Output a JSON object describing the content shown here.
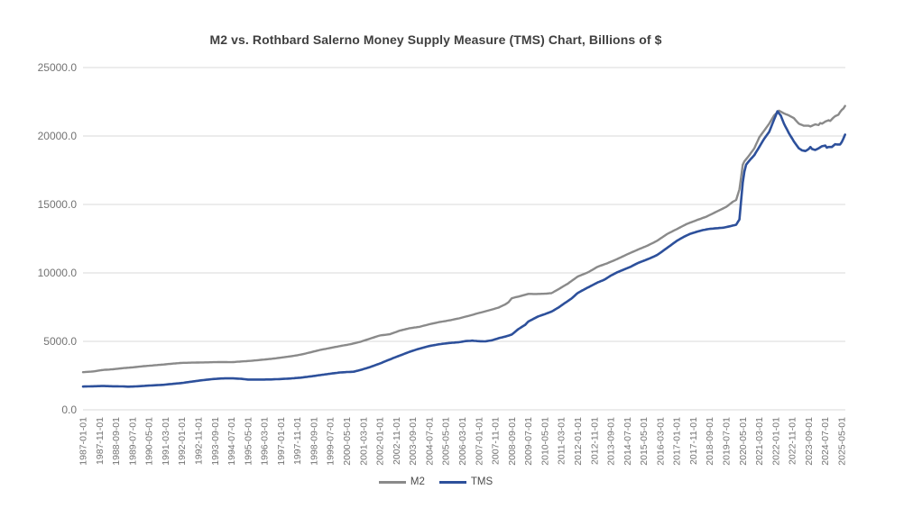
{
  "chart_data": {
    "type": "line",
    "title": "M2 vs. Rothbard Salerno Money Supply Measure (TMS) Chart, Billions of $",
    "xlabel": "",
    "ylabel": "",
    "units": "Billions of $",
    "ylim": [
      0,
      25000
    ],
    "y_tick_values": [
      0,
      5000,
      10000,
      15000,
      20000,
      25000
    ],
    "y_tick_labels": [
      "0.0",
      "5000.0",
      "10000.0",
      "15000.0",
      "20000.0",
      "25000.0"
    ],
    "grid": "horizontal",
    "legend_position": "bottom",
    "x_axis_note": "monthly data, month index 0 = 1987-01-01; ticks every 10 months",
    "x_tick_month_index": [
      0,
      10,
      20,
      30,
      40,
      50,
      60,
      70,
      80,
      90,
      100,
      110,
      120,
      130,
      140,
      150,
      160,
      170,
      180,
      190,
      200,
      210,
      220,
      230,
      240,
      250,
      260,
      270,
      280,
      290,
      300,
      310,
      320,
      330,
      340,
      350,
      360,
      370,
      380,
      390,
      400,
      410,
      420,
      430,
      440,
      450,
      460
    ],
    "x_tick_labels": [
      "1987-01-01",
      "1987-11-01",
      "1988-09-01",
      "1989-07-01",
      "1990-05-01",
      "1991-03-01",
      "1992-01-01",
      "1992-11-01",
      "1993-09-01",
      "1994-07-01",
      "1995-05-01",
      "1996-03-01",
      "1997-01-01",
      "1997-11-01",
      "1998-09-01",
      "1999-07-01",
      "2000-05-01",
      "2001-03-01",
      "2002-01-01",
      "2002-11-01",
      "2003-09-01",
      "2004-07-01",
      "2005-05-01",
      "2006-03-01",
      "2007-01-01",
      "2007-11-01",
      "2008-09-01",
      "2009-07-01",
      "2010-05-01",
      "2011-03-01",
      "2012-01-01",
      "2012-11-01",
      "2013-09-01",
      "2014-07-01",
      "2015-05-01",
      "2016-03-01",
      "2017-01-01",
      "2017-11-01",
      "2018-09-01",
      "2019-07-01",
      "2020-05-01",
      "2021-03-01",
      "2022-01-01",
      "2022-11-01",
      "2023-09-01",
      "2024-07-01",
      "2025-05-01"
    ],
    "series": [
      {
        "name": "M2",
        "color": "#8a8a8a",
        "points_format": "[month_index, billions_of_dollars]",
        "points": [
          [
            0,
            2750
          ],
          [
            6,
            2800
          ],
          [
            12,
            2910
          ],
          [
            18,
            2960
          ],
          [
            24,
            3040
          ],
          [
            30,
            3100
          ],
          [
            36,
            3180
          ],
          [
            42,
            3240
          ],
          [
            48,
            3300
          ],
          [
            54,
            3370
          ],
          [
            60,
            3430
          ],
          [
            66,
            3445
          ],
          [
            72,
            3460
          ],
          [
            78,
            3475
          ],
          [
            84,
            3490
          ],
          [
            90,
            3480
          ],
          [
            96,
            3530
          ],
          [
            102,
            3580
          ],
          [
            108,
            3650
          ],
          [
            114,
            3720
          ],
          [
            120,
            3810
          ],
          [
            126,
            3910
          ],
          [
            132,
            4030
          ],
          [
            138,
            4200
          ],
          [
            144,
            4380
          ],
          [
            150,
            4520
          ],
          [
            156,
            4660
          ],
          [
            162,
            4790
          ],
          [
            168,
            4960
          ],
          [
            174,
            5200
          ],
          [
            180,
            5430
          ],
          [
            186,
            5520
          ],
          [
            192,
            5780
          ],
          [
            198,
            5960
          ],
          [
            204,
            6060
          ],
          [
            210,
            6250
          ],
          [
            216,
            6410
          ],
          [
            222,
            6530
          ],
          [
            228,
            6680
          ],
          [
            234,
            6870
          ],
          [
            240,
            7070
          ],
          [
            246,
            7260
          ],
          [
            252,
            7470
          ],
          [
            256,
            7700
          ],
          [
            258,
            7860
          ],
          [
            260,
            8150
          ],
          [
            262,
            8220
          ],
          [
            264,
            8270
          ],
          [
            268,
            8400
          ],
          [
            270,
            8470
          ],
          [
            274,
            8460
          ],
          [
            280,
            8480
          ],
          [
            284,
            8520
          ],
          [
            288,
            8790
          ],
          [
            294,
            9220
          ],
          [
            300,
            9740
          ],
          [
            306,
            10030
          ],
          [
            312,
            10450
          ],
          [
            318,
            10710
          ],
          [
            324,
            11020
          ],
          [
            330,
            11360
          ],
          [
            336,
            11680
          ],
          [
            342,
            11980
          ],
          [
            348,
            12340
          ],
          [
            354,
            12830
          ],
          [
            360,
            13200
          ],
          [
            366,
            13570
          ],
          [
            372,
            13850
          ],
          [
            378,
            14110
          ],
          [
            384,
            14470
          ],
          [
            390,
            14820
          ],
          [
            394,
            15200
          ],
          [
            396,
            15330
          ],
          [
            398,
            16100
          ],
          [
            399,
            17000
          ],
          [
            400,
            17900
          ],
          [
            401,
            18150
          ],
          [
            404,
            18600
          ],
          [
            407,
            19100
          ],
          [
            410,
            19900
          ],
          [
            413,
            20400
          ],
          [
            416,
            20900
          ],
          [
            419,
            21500
          ],
          [
            422,
            21850
          ],
          [
            425,
            21650
          ],
          [
            428,
            21500
          ],
          [
            431,
            21300
          ],
          [
            434,
            20900
          ],
          [
            437,
            20750
          ],
          [
            440,
            20750
          ],
          [
            441,
            20700
          ],
          [
            444,
            20850
          ],
          [
            446,
            20800
          ],
          [
            447,
            20950
          ],
          [
            448,
            20900
          ],
          [
            450,
            21050
          ],
          [
            452,
            21150
          ],
          [
            453,
            21100
          ],
          [
            455,
            21350
          ],
          [
            456,
            21450
          ],
          [
            458,
            21550
          ],
          [
            459,
            21750
          ],
          [
            460,
            21900
          ],
          [
            461,
            22000
          ],
          [
            462,
            22200
          ]
        ]
      },
      {
        "name": "TMS",
        "color": "#2d509b",
        "points_format": "[month_index, billions_of_dollars]",
        "points": [
          [
            0,
            1700
          ],
          [
            6,
            1720
          ],
          [
            12,
            1740
          ],
          [
            18,
            1720
          ],
          [
            24,
            1710
          ],
          [
            27,
            1690
          ],
          [
            30,
            1700
          ],
          [
            36,
            1740
          ],
          [
            42,
            1780
          ],
          [
            48,
            1820
          ],
          [
            54,
            1890
          ],
          [
            60,
            1960
          ],
          [
            66,
            2060
          ],
          [
            72,
            2160
          ],
          [
            78,
            2240
          ],
          [
            84,
            2290
          ],
          [
            90,
            2300
          ],
          [
            96,
            2260
          ],
          [
            100,
            2210
          ],
          [
            108,
            2210
          ],
          [
            114,
            2220
          ],
          [
            120,
            2250
          ],
          [
            126,
            2290
          ],
          [
            132,
            2350
          ],
          [
            138,
            2440
          ],
          [
            144,
            2540
          ],
          [
            150,
            2640
          ],
          [
            156,
            2730
          ],
          [
            160,
            2760
          ],
          [
            164,
            2780
          ],
          [
            168,
            2900
          ],
          [
            174,
            3120
          ],
          [
            180,
            3380
          ],
          [
            186,
            3680
          ],
          [
            192,
            3960
          ],
          [
            198,
            4240
          ],
          [
            204,
            4470
          ],
          [
            210,
            4660
          ],
          [
            216,
            4790
          ],
          [
            222,
            4880
          ],
          [
            228,
            4940
          ],
          [
            232,
            5020
          ],
          [
            236,
            5050
          ],
          [
            240,
            5010
          ],
          [
            244,
            5000
          ],
          [
            248,
            5080
          ],
          [
            252,
            5230
          ],
          [
            256,
            5350
          ],
          [
            258,
            5420
          ],
          [
            260,
            5500
          ],
          [
            262,
            5700
          ],
          [
            264,
            5900
          ],
          [
            268,
            6200
          ],
          [
            270,
            6450
          ],
          [
            274,
            6700
          ],
          [
            276,
            6820
          ],
          [
            280,
            6990
          ],
          [
            284,
            7170
          ],
          [
            288,
            7450
          ],
          [
            292,
            7790
          ],
          [
            296,
            8110
          ],
          [
            300,
            8540
          ],
          [
            304,
            8800
          ],
          [
            308,
            9050
          ],
          [
            312,
            9300
          ],
          [
            316,
            9500
          ],
          [
            320,
            9800
          ],
          [
            324,
            10050
          ],
          [
            328,
            10250
          ],
          [
            332,
            10450
          ],
          [
            336,
            10700
          ],
          [
            340,
            10890
          ],
          [
            344,
            11080
          ],
          [
            348,
            11300
          ],
          [
            352,
            11640
          ],
          [
            356,
            11990
          ],
          [
            360,
            12340
          ],
          [
            364,
            12620
          ],
          [
            368,
            12850
          ],
          [
            372,
            13000
          ],
          [
            376,
            13130
          ],
          [
            380,
            13220
          ],
          [
            384,
            13260
          ],
          [
            388,
            13300
          ],
          [
            392,
            13400
          ],
          [
            396,
            13520
          ],
          [
            398,
            13900
          ],
          [
            399,
            15300
          ],
          [
            400,
            16600
          ],
          [
            401,
            17400
          ],
          [
            402,
            17900
          ],
          [
            404,
            18200
          ],
          [
            407,
            18600
          ],
          [
            410,
            19200
          ],
          [
            413,
            19800
          ],
          [
            416,
            20300
          ],
          [
            419,
            21200
          ],
          [
            421,
            21800
          ],
          [
            423,
            21500
          ],
          [
            425,
            20900
          ],
          [
            428,
            20200
          ],
          [
            431,
            19600
          ],
          [
            434,
            19100
          ],
          [
            436,
            18950
          ],
          [
            438,
            18900
          ],
          [
            440,
            19050
          ],
          [
            441,
            19200
          ],
          [
            442,
            19050
          ],
          [
            444,
            18980
          ],
          [
            446,
            19100
          ],
          [
            448,
            19250
          ],
          [
            450,
            19300
          ],
          [
            451,
            19150
          ],
          [
            452,
            19200
          ],
          [
            454,
            19200
          ],
          [
            456,
            19400
          ],
          [
            457,
            19380
          ],
          [
            459,
            19380
          ],
          [
            460,
            19550
          ],
          [
            461,
            19800
          ],
          [
            462,
            20100
          ]
        ]
      }
    ],
    "colors": {
      "gridline": "#d9d9d9",
      "axis_line": "#d9d9d9",
      "tick_label": "#737373",
      "title": "#404040",
      "legend_label": "#4a4a4a",
      "background": "#ffffff"
    }
  }
}
